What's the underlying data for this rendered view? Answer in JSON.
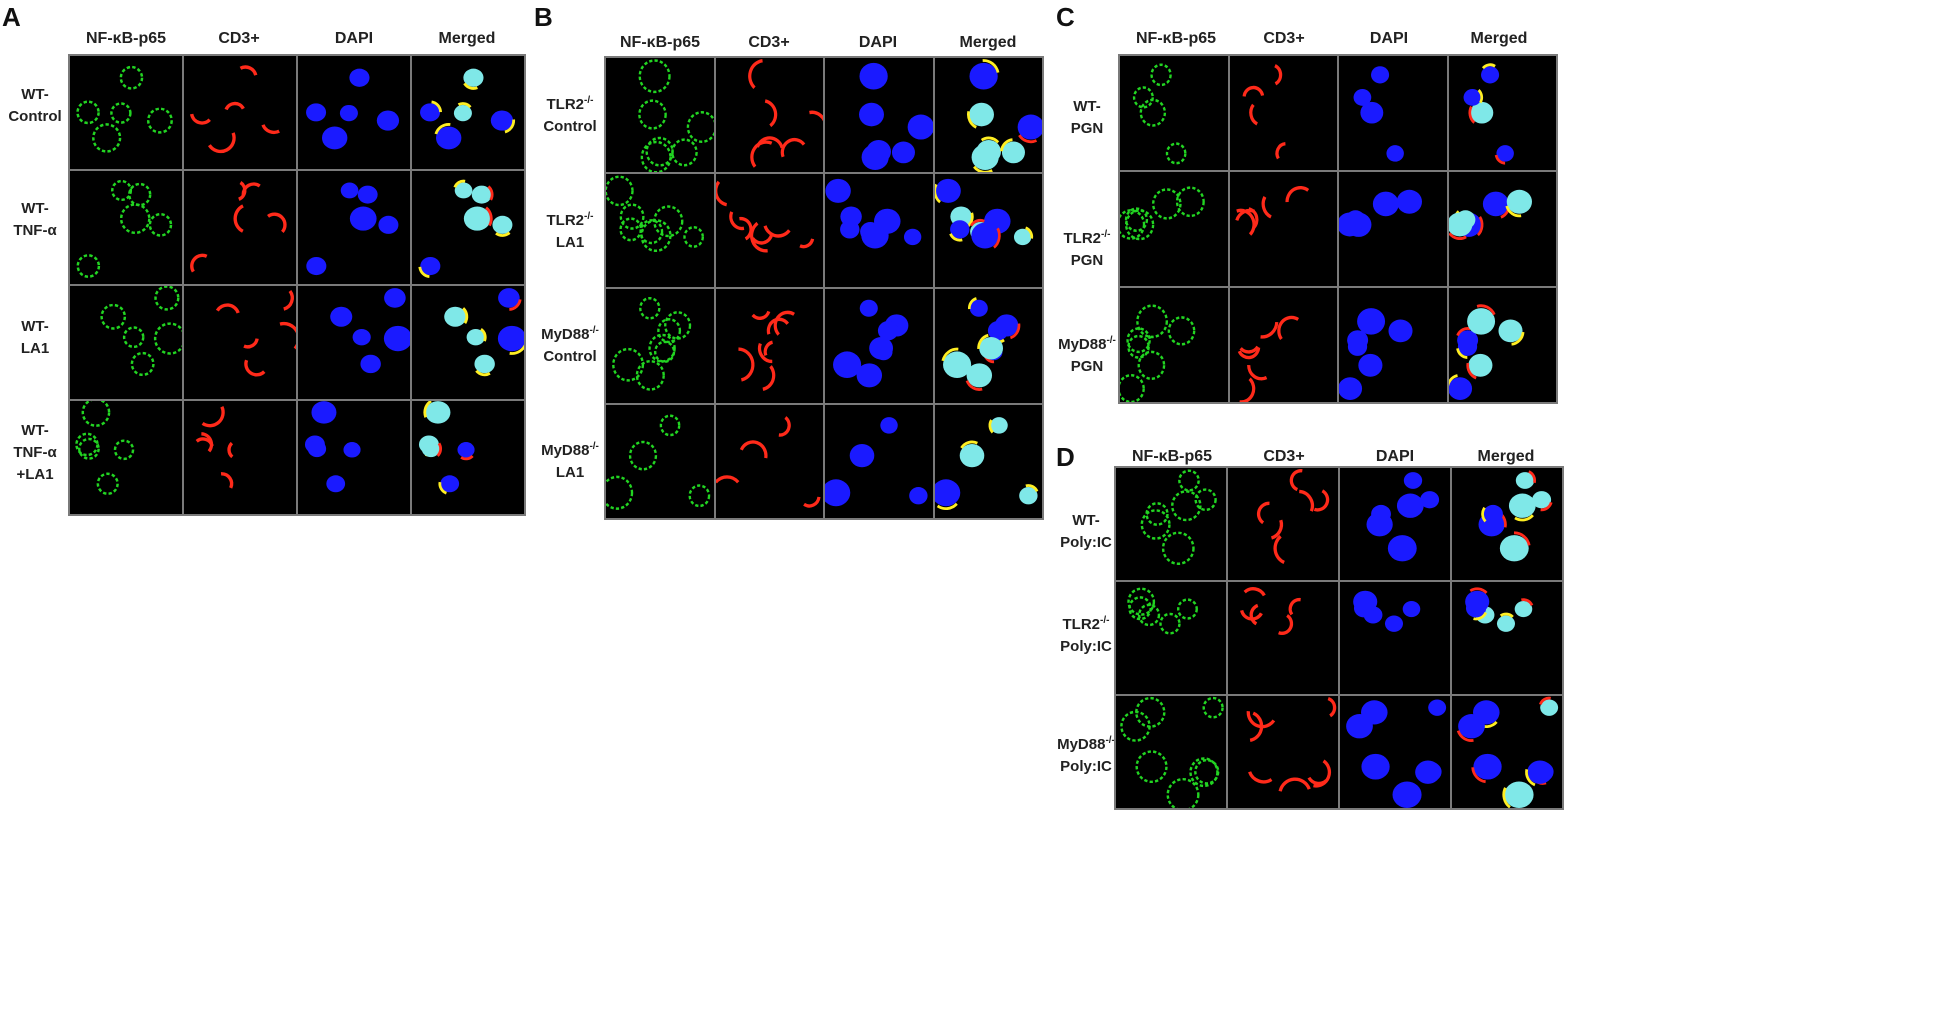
{
  "panels": [
    {
      "letter": "A",
      "columns": [
        "NF-κB-p65",
        "CD3+",
        "DAPI",
        "Merged"
      ],
      "rows": [
        {
          "line1": "WT-",
          "line2": "Control",
          "sup": ""
        },
        {
          "line1": "WT-",
          "line2": "TNF-α",
          "sup": ""
        },
        {
          "line1": "WT-",
          "line2": "LA1",
          "sup": ""
        },
        {
          "line1": "WT-",
          "line2": "TNF-α",
          "line3": "+LA1",
          "sup": ""
        }
      ]
    },
    {
      "letter": "B",
      "columns": [
        "NF-κB-p65",
        "CD3+",
        "DAPI",
        "Merged"
      ],
      "rows": [
        {
          "line1": "TLR2",
          "sup": "-/-",
          "line2": "Control"
        },
        {
          "line1": "TLR2",
          "sup": "-/-",
          "line2": "LA1"
        },
        {
          "line1": "MyD88",
          "sup": "-/-",
          "line2": "Control"
        },
        {
          "line1": "MyD88",
          "sup": "-/-",
          "line2": "LA1"
        }
      ]
    },
    {
      "letter": "C",
      "columns": [
        "NF-κB-p65",
        "CD3+",
        "DAPI",
        "Merged"
      ],
      "rows": [
        {
          "line1": "WT-",
          "sup": "",
          "line2": "PGN"
        },
        {
          "line1": "TLR2",
          "sup": "-/-",
          "line2": "PGN"
        },
        {
          "line1": "MyD88",
          "sup": "-/-",
          "line2": "PGN"
        }
      ]
    },
    {
      "letter": "D",
      "columns": [
        "NF-κB-p65",
        "CD3+",
        "DAPI",
        "Merged"
      ],
      "rows": [
        {
          "line1": "WT-",
          "sup": "",
          "line2": "Poly:IC"
        },
        {
          "line1": "TLR2",
          "sup": "-/-",
          "line2": "Poly:IC"
        },
        {
          "line1": "MyD88",
          "sup": "-/-",
          "line2": "Poly:IC"
        }
      ]
    }
  ],
  "channel_colors": {
    "nfkb": "#22d422",
    "cd3": "#ff2a1a",
    "dapi": "#1a1aff",
    "merged_nucleus": "#7fe8e8",
    "background": "#000000"
  }
}
